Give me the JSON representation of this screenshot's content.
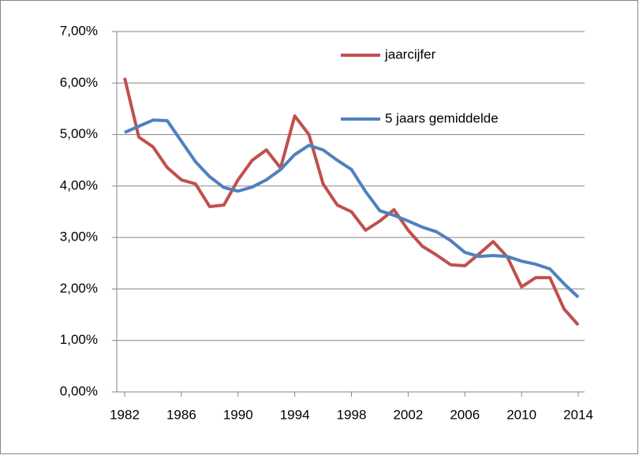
{
  "chart_data": {
    "type": "line",
    "x": [
      1982,
      1983,
      1984,
      1985,
      1986,
      1987,
      1988,
      1989,
      1990,
      1991,
      1992,
      1993,
      1994,
      1995,
      1996,
      1997,
      1998,
      1999,
      2000,
      2001,
      2002,
      2003,
      2004,
      2005,
      2006,
      2007,
      2008,
      2009,
      2010,
      2011,
      2012,
      2013,
      2014
    ],
    "series": [
      {
        "name": "jaarcijfer",
        "color": "#c0504d",
        "values": [
          6.1,
          4.95,
          4.76,
          4.36,
          4.12,
          4.04,
          3.6,
          3.63,
          4.12,
          4.5,
          4.7,
          4.35,
          5.36,
          5.0,
          4.04,
          3.63,
          3.5,
          3.14,
          3.32,
          3.54,
          3.14,
          2.83,
          2.66,
          2.47,
          2.45,
          2.68,
          2.92,
          2.62,
          2.04,
          2.22,
          2.22,
          1.61,
          1.3
        ]
      },
      {
        "name": "5 jaars gemiddelde",
        "color": "#4f81bd",
        "values": [
          5.04,
          5.16,
          5.28,
          5.27,
          4.87,
          4.47,
          4.18,
          3.97,
          3.9,
          3.98,
          4.12,
          4.32,
          4.61,
          4.79,
          4.7,
          4.5,
          4.32,
          3.89,
          3.52,
          3.43,
          3.32,
          3.2,
          3.11,
          2.94,
          2.71,
          2.63,
          2.65,
          2.63,
          2.54,
          2.48,
          2.39,
          2.1,
          1.84
        ]
      }
    ],
    "xlim": [
      1982,
      2014
    ],
    "xticks": [
      1982,
      1986,
      1990,
      1994,
      1998,
      2002,
      2006,
      2010,
      2014
    ],
    "ylim": [
      0,
      7
    ],
    "yticks": [
      {
        "value": 0,
        "label": "0,00%"
      },
      {
        "value": 1,
        "label": "1,00%"
      },
      {
        "value": 2,
        "label": "2,00%"
      },
      {
        "value": 3,
        "label": "3,00%"
      },
      {
        "value": 4,
        "label": "4,00%"
      },
      {
        "value": 5,
        "label": "5,00%"
      },
      {
        "value": 6,
        "label": "6,00%"
      },
      {
        "value": 7,
        "label": "7,00%"
      }
    ],
    "grid": true
  }
}
